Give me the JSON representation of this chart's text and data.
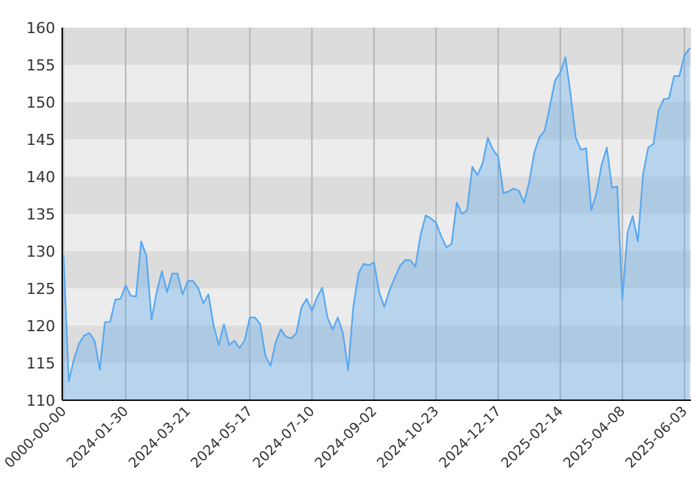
{
  "chart_data": {
    "type": "area",
    "categories": [
      "0000-00-00",
      null,
      null,
      null,
      null,
      null,
      null,
      null,
      null,
      null,
      null,
      null,
      "2024-01-30",
      null,
      null,
      null,
      null,
      null,
      null,
      null,
      null,
      null,
      null,
      null,
      "2024-03-21",
      null,
      null,
      null,
      null,
      null,
      null,
      null,
      null,
      null,
      null,
      null,
      "2024-05-17",
      null,
      null,
      null,
      null,
      null,
      null,
      null,
      null,
      null,
      null,
      null,
      "2024-07-10",
      null,
      null,
      null,
      null,
      null,
      null,
      null,
      null,
      null,
      null,
      null,
      "2024-09-02",
      null,
      null,
      null,
      null,
      null,
      null,
      null,
      null,
      null,
      null,
      null,
      "2024-10-23",
      null,
      null,
      null,
      null,
      null,
      null,
      null,
      null,
      null,
      null,
      null,
      "2024-12-17",
      null,
      null,
      null,
      null,
      null,
      null,
      null,
      null,
      null,
      null,
      null,
      "2025-02-14",
      null,
      null,
      null,
      null,
      null,
      null,
      null,
      null,
      null,
      null,
      null,
      "2025-04-08",
      null,
      null,
      null,
      null,
      null,
      null,
      null,
      null,
      null,
      null,
      null,
      "2025-06-03",
      null
    ],
    "ylim": [
      110,
      160
    ],
    "yticks": [
      110,
      115,
      120,
      125,
      130,
      135,
      140,
      145,
      150,
      155,
      160
    ],
    "grid": true,
    "series": [
      {
        "color": "#5aa9f0",
        "values": [
          129.4,
          112.5,
          115.5,
          117.6,
          118.7,
          119,
          118,
          114.1,
          120.5,
          120.5,
          123.5,
          123.6,
          125.4,
          124,
          123.9,
          131.3,
          129.4,
          120.8,
          124.5,
          127.3,
          124.5,
          127,
          127,
          124.2,
          126,
          126,
          125.1,
          123,
          124.2,
          120,
          117.4,
          120.2,
          117.4,
          118,
          117,
          118,
          121.1,
          121.1,
          120.2,
          116,
          114.6,
          117.8,
          119.5,
          118.5,
          118.3,
          119,
          122.5,
          123.6,
          122,
          123.8,
          125.1,
          121.1,
          119.5,
          121.1,
          119,
          114,
          122.5,
          127,
          128.3,
          128.1,
          128.5,
          124.5,
          122.5,
          124.8,
          126.4,
          128,
          128.8,
          128.8,
          127.9,
          132.2,
          134.8,
          134.4,
          133.8,
          132,
          130.5,
          131,
          136.5,
          135,
          135.5,
          141.3,
          140.2,
          141.8,
          145.2,
          143.6,
          142.7,
          137.8,
          138,
          138.4,
          138.1,
          136.5,
          139.3,
          143.3,
          145.3,
          146.2,
          149.5,
          152.9,
          154,
          156,
          151,
          145.2,
          143.6,
          143.8,
          135.5,
          137.8,
          141.6,
          143.9,
          138.5,
          138.7,
          123.6,
          132.5,
          134.7,
          131.3,
          140.3,
          143.9,
          144.4,
          148.9,
          150.4,
          150.5,
          153.5,
          153.5,
          156.3,
          157.2
        ]
      }
    ]
  }
}
